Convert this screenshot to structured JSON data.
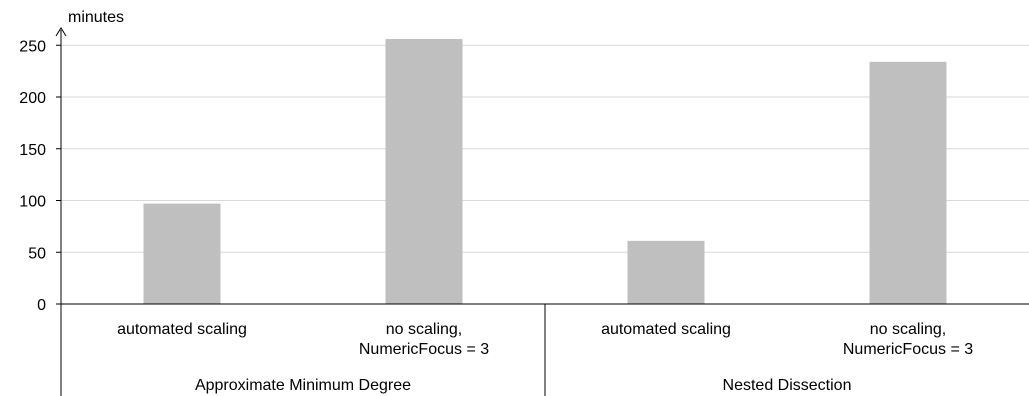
{
  "chart_data": {
    "type": "bar",
    "title": "",
    "ylabel": "minutes",
    "xlabel": "",
    "ylim": [
      0,
      250
    ],
    "yticks": [
      0,
      50,
      100,
      150,
      200,
      250
    ],
    "grid": true,
    "bar_color": "#bfbfbf",
    "groups": [
      {
        "name": "Approximate Minimum Degree",
        "categories": [
          {
            "label": [
              "automated scaling"
            ],
            "value": 97
          },
          {
            "label": [
              "no scaling,",
              "NumericFocus = 3"
            ],
            "value": 256
          }
        ]
      },
      {
        "name": "Nested Dissection",
        "categories": [
          {
            "label": [
              "automated scaling"
            ],
            "value": 61
          },
          {
            "label": [
              "no scaling,",
              "NumericFocus = 3"
            ],
            "value": 234
          }
        ]
      }
    ]
  }
}
